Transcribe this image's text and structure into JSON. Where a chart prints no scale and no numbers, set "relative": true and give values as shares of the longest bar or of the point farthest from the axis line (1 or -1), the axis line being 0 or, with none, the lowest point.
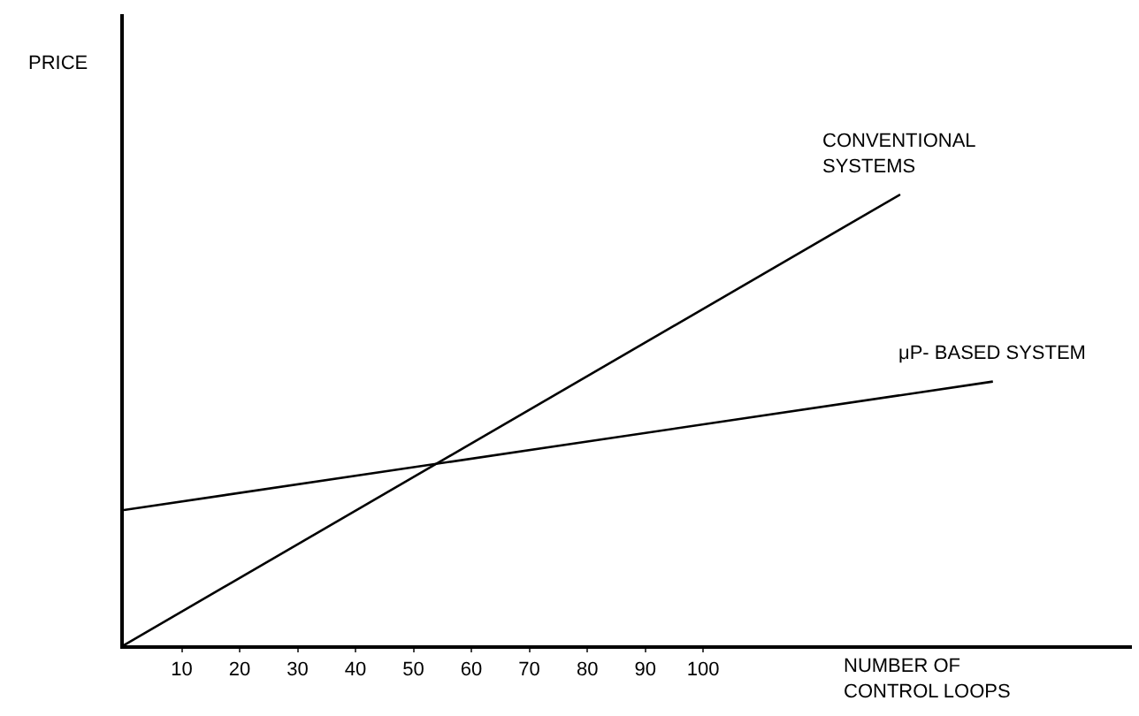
{
  "chart_data": {
    "type": "line",
    "relative": true,
    "xlabel": "NUMBER OF\nCONTROL LOOPS",
    "annotations": [
      "PRICE"
    ],
    "xlim": [
      0,
      174
    ],
    "xticks": [
      10,
      20,
      30,
      40,
      50,
      60,
      70,
      80,
      90,
      100
    ],
    "legend": false,
    "marker": "none",
    "line_style": "solid",
    "series": [
      {
        "name": "CONVENTIONAL\nSYSTEMS",
        "color": "#000000",
        "x": [
          0,
          134
        ],
        "values": [
          0,
          1
        ]
      },
      {
        "name": "μP- BASED SYSTEM",
        "color": "#000000",
        "x": [
          0,
          150
        ],
        "values": [
          0.3,
          0.585
        ]
      }
    ]
  }
}
